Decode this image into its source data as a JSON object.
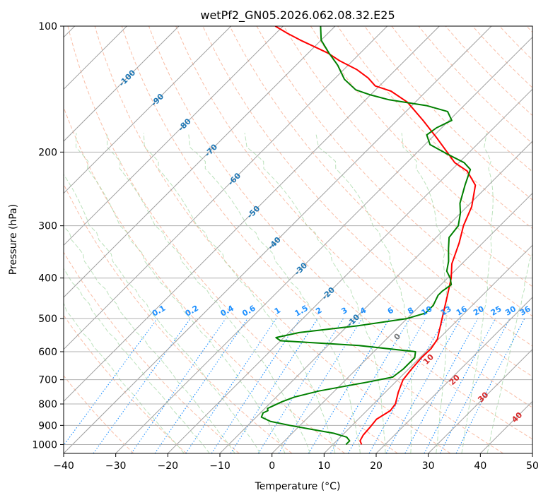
{
  "chart_data": {
    "type": "line",
    "title": "wetPf2_GN05.2026.062.08.32.E25",
    "xlabel": "Temperature (°C)",
    "ylabel": "Pressure (hPa)",
    "xlim": [
      -40,
      50
    ],
    "ylim": [
      1050,
      100
    ],
    "y_scale": "log",
    "grid": true,
    "x_ticks": [
      -40,
      -30,
      -20,
      -10,
      0,
      10,
      20,
      30,
      40,
      50
    ],
    "x_tick_labels": [
      "−40",
      "−30",
      "−20",
      "−10",
      "0",
      "10",
      "20",
      "30",
      "40",
      "50"
    ],
    "y_ticks": [
      1000,
      900,
      800,
      700,
      600,
      500,
      400,
      300,
      200,
      100
    ],
    "y_tick_labels": [
      "1000",
      "900",
      "800",
      "700",
      "600",
      "500",
      "400",
      "300",
      "200",
      "100"
    ],
    "series": [
      {
        "color": "#ff0000",
        "points": [
          [
            15.5,
            1000
          ],
          [
            14.5,
            980
          ],
          [
            14.0,
            950
          ],
          [
            13.8,
            910
          ],
          [
            13.5,
            870
          ],
          [
            14.5,
            830
          ],
          [
            14.2,
            800
          ],
          [
            12.5,
            750
          ],
          [
            11.0,
            700
          ],
          [
            10.6,
            660
          ],
          [
            10.3,
            620
          ],
          [
            10.4,
            590
          ],
          [
            9.8,
            560
          ],
          [
            7.8,
            520
          ],
          [
            6.2,
            490
          ],
          [
            3.3,
            440
          ],
          [
            0.7,
            400
          ],
          [
            -1.9,
            370
          ],
          [
            -4.5,
            330
          ],
          [
            -7.0,
            300
          ],
          [
            -9.1,
            270
          ],
          [
            -12.5,
            240
          ],
          [
            -16.8,
            222
          ],
          [
            -20.8,
            212
          ],
          [
            -24.3,
            200
          ],
          [
            -29.0,
            185
          ],
          [
            -35.0,
            168
          ],
          [
            -41.5,
            152
          ],
          [
            -46.8,
            143
          ],
          [
            -50.8,
            139
          ],
          [
            -53.7,
            133
          ],
          [
            -57.5,
            127
          ],
          [
            -62.5,
            121
          ],
          [
            -66.2,
            116
          ],
          [
            -70.0,
            112
          ],
          [
            -74.0,
            108
          ],
          [
            -77.8,
            104
          ],
          [
            -81.5,
            100
          ]
        ]
      },
      {
        "color": "#008000",
        "points": [
          [
            12.5,
            1000
          ],
          [
            12.5,
            980
          ],
          [
            11.2,
            960
          ],
          [
            8.0,
            940
          ],
          [
            3.0,
            920
          ],
          [
            -2.0,
            900
          ],
          [
            -6.5,
            880
          ],
          [
            -9.0,
            860
          ],
          [
            -9.5,
            840
          ],
          [
            -9.0,
            830
          ],
          [
            -9.5,
            820
          ],
          [
            -9.0,
            810
          ],
          [
            -8.0,
            790
          ],
          [
            -6.5,
            770
          ],
          [
            -3.0,
            745
          ],
          [
            4.5,
            710
          ],
          [
            8.5,
            690
          ],
          [
            9.0,
            660
          ],
          [
            9.0,
            620
          ],
          [
            8.0,
            600
          ],
          [
            -4.0,
            580
          ],
          [
            -20.0,
            565
          ],
          [
            -21.5,
            555
          ],
          [
            -18.0,
            540
          ],
          [
            -8.0,
            520
          ],
          [
            0.0,
            500
          ],
          [
            2.5,
            485
          ],
          [
            2.5,
            465
          ],
          [
            1.5,
            440
          ],
          [
            1.5,
            430
          ],
          [
            2.0,
            415
          ],
          [
            0.5,
            400
          ],
          [
            -1.5,
            385
          ],
          [
            -3.0,
            365
          ],
          [
            -5.5,
            340
          ],
          [
            -7.5,
            320
          ],
          [
            -8.0,
            300
          ],
          [
            -10.0,
            280
          ],
          [
            -12.0,
            265
          ],
          [
            -14.5,
            240
          ],
          [
            -16.5,
            220
          ],
          [
            -19.0,
            212
          ],
          [
            -24.0,
            202
          ],
          [
            -29.0,
            192
          ],
          [
            -31.5,
            182
          ],
          [
            -31.0,
            175
          ],
          [
            -29.5,
            168
          ],
          [
            -32.0,
            160
          ],
          [
            -37.0,
            155
          ],
          [
            -45.5,
            150
          ],
          [
            -50.0,
            146
          ],
          [
            -53.8,
            142
          ],
          [
            -58.0,
            134
          ],
          [
            -62.0,
            124
          ],
          [
            -66.0,
            116
          ],
          [
            -70.0,
            108
          ],
          [
            -72.8,
            100
          ]
        ]
      }
    ],
    "isotherm_labels": {
      "color": "#1f77b4",
      "values": [
        -100,
        -90,
        -80,
        -70,
        -60,
        -50,
        -40,
        -30,
        -20,
        -10
      ]
    },
    "mixing_ratio_labels": {
      "color": "#1e90ff",
      "values": [
        "0.1",
        "0.2",
        "0.4",
        "0.6",
        "1",
        "1.5",
        "2",
        "3",
        "4",
        "6",
        "8",
        "10",
        "13",
        "16",
        "20",
        "25",
        "30",
        "36"
      ]
    },
    "moist_adiabat_labels": {
      "values": [
        "0",
        "10",
        "20",
        "30",
        "40"
      ]
    }
  }
}
